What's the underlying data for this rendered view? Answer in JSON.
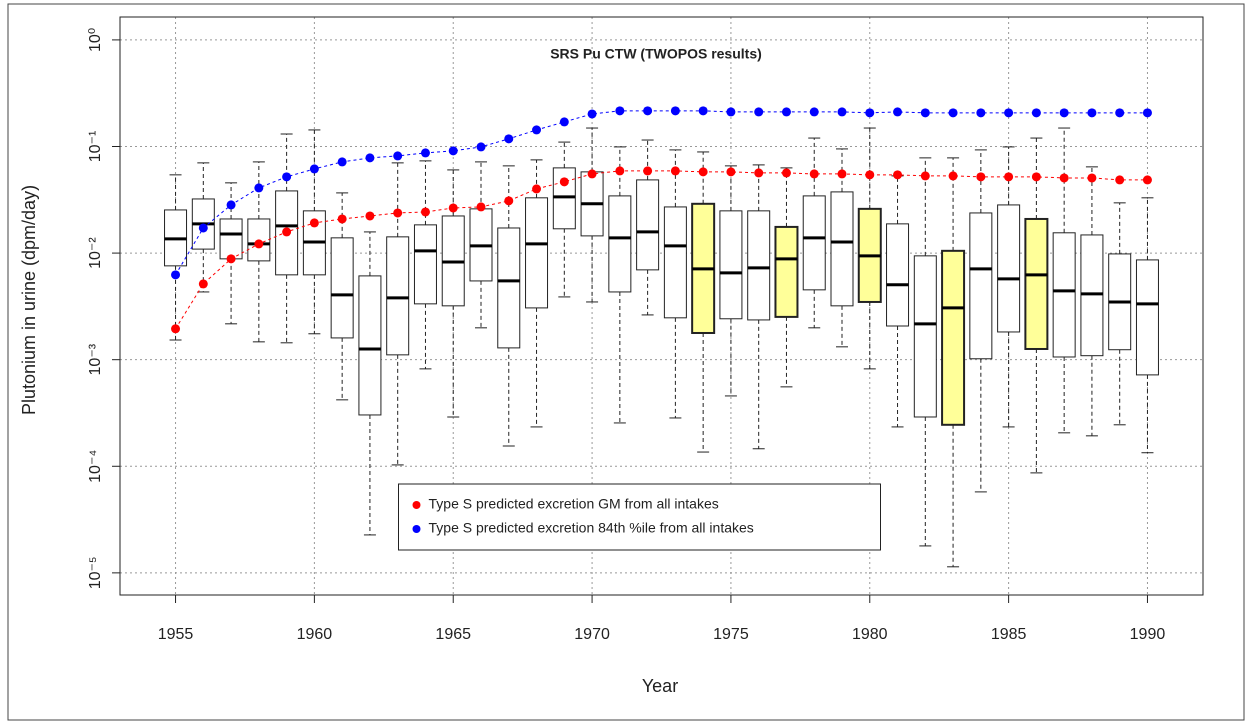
{
  "chart_data": {
    "type": "box",
    "title": "SRS Pu CTW (TWOPOS results)",
    "x_label": "Year",
    "y_label": "Plutonium in urine (dpm/day)",
    "log_y": true,
    "grid": true,
    "legend": "bottom",
    "x": [
      1955,
      1956,
      1957,
      1958,
      1959,
      1960,
      1961,
      1962,
      1963,
      1964,
      1965,
      1966,
      1967,
      1968,
      1969,
      1970,
      1971,
      1972,
      1973,
      1974,
      1975,
      1976,
      1977,
      1978,
      1979,
      1980,
      1981,
      1982,
      1983,
      1984,
      1985,
      1986,
      1987,
      1988,
      1989,
      1990
    ],
    "xlim": [
      1953,
      1992
    ],
    "xticks": [
      1955,
      1960,
      1965,
      1970,
      1975,
      1980,
      1985,
      1990
    ],
    "ylim": [
      6.2e-06,
      1.64
    ],
    "yticks": [
      {
        "value": 1,
        "label": "10⁰"
      },
      {
        "value": 0.1,
        "label": "10⁻¹"
      },
      {
        "value": 0.01,
        "label": "10⁻²"
      },
      {
        "value": 0.001,
        "label": "10⁻³"
      },
      {
        "value": 0.0001,
        "label": "10⁻⁴"
      },
      {
        "value": 1e-05,
        "label": "10⁻⁵"
      }
    ],
    "boxes": {
      "whisker_high": [
        0.0542,
        0.0702,
        0.0456,
        0.0717,
        0.131,
        0.143,
        0.0367,
        0.0158,
        0.0702,
        0.0733,
        0.0603,
        0.0717,
        0.0658,
        0.0749,
        0.11,
        0.149,
        0.0991,
        0.115,
        0.0929,
        0.0889,
        0.0658,
        0.0672,
        0.063,
        0.12,
        0.0949,
        0.149,
        0.053,
        0.0782,
        0.0782,
        0.0929,
        0.0991,
        0.12,
        0.149,
        0.0644,
        0.0296,
        0.033
      ],
      "q3": [
        0.0254,
        0.0322,
        0.0209,
        0.0209,
        0.0383,
        0.0249,
        0.0139,
        0.00611,
        0.0142,
        0.0184,
        0.0223,
        0.026,
        0.0172,
        0.033,
        0.063,
        0.0578,
        0.0344,
        0.0486,
        0.0271,
        0.029,
        0.0249,
        0.0249,
        0.0176,
        0.0344,
        0.0375,
        0.026,
        0.0188,
        0.00942,
        0.0105,
        0.0238,
        0.0283,
        0.0209,
        0.0155,
        0.0148,
        0.00982,
        0.00863
      ],
      "median": [
        0.0136,
        0.0188,
        0.0151,
        0.0122,
        0.018,
        0.0127,
        0.00405,
        0.00126,
        0.0038,
        0.0105,
        0.00826,
        0.0117,
        0.00548,
        0.0122,
        0.0337,
        0.029,
        0.0139,
        0.0158,
        0.0117,
        0.00711,
        0.00652,
        0.00727,
        0.00883,
        0.0139,
        0.0127,
        0.00942,
        0.00504,
        0.00217,
        0.00306,
        0.00711,
        0.00573,
        0.00625,
        0.00442,
        0.00414,
        0.00348,
        0.00334
      ],
      "q1": [
        0.00759,
        0.0109,
        0.00883,
        0.00845,
        0.00625,
        0.00625,
        0.0016,
        0.000303,
        0.00111,
        0.00334,
        0.0032,
        0.00548,
        0.00129,
        0.00306,
        0.0169,
        0.0145,
        0.00432,
        0.00696,
        0.00247,
        0.00178,
        0.00242,
        0.00236,
        0.00252,
        0.00452,
        0.0032,
        0.00348,
        0.00207,
        0.00029,
        0.000245,
        0.00102,
        0.00182,
        0.00126,
        0.00106,
        0.00109,
        0.00124,
        0.00072
      ],
      "whisker_low": [
        0.00153,
        0.00432,
        0.00217,
        0.00147,
        0.00144,
        0.00175,
        0.00042,
        2.27e-05,
        0.000103,
        0.00082,
        0.00029,
        0.00199,
        0.000155,
        0.000234,
        0.00388,
        0.00348,
        0.000255,
        0.00263,
        0.000284,
        0.000136,
        0.000457,
        0.000146,
        0.000556,
        0.00199,
        0.00132,
        0.00082,
        0.000234,
        1.79e-05,
        1.14e-05,
        5.75e-05,
        0.000234,
        8.67e-05,
        0.000206,
        0.000193,
        0.000245,
        0.000134
      ],
      "colors": [
        "#ffffff",
        "#ffffff",
        "#ffffff",
        "#ffffff",
        "#ffffff",
        "#ffffff",
        "#ffffff",
        "#ffffff",
        "#ffffff",
        "#ffffff",
        "#ffffff",
        "#ffffff",
        "#ffffff",
        "#ffffff",
        "#ffffff",
        "#ffffff",
        "#ffffff",
        "#ffffff",
        "#ffffff",
        "#ffff99",
        "#ffffff",
        "#ffffff",
        "#ffff99",
        "#ffffff",
        "#ffffff",
        "#ffff99",
        "#ffffff",
        "#ffffff",
        "#ffff99",
        "#ffffff",
        "#ffffff",
        "#ffff99",
        "#ffffff",
        "#ffffff",
        "#ffffff",
        "#ffffff"
      ]
    },
    "series": [
      {
        "name": "Type S predicted excretion GM from all intakes",
        "color": "#ff0000",
        "values": [
          0.00195,
          0.00514,
          0.00883,
          0.0122,
          0.0158,
          0.0192,
          0.0209,
          0.0223,
          0.0238,
          0.0243,
          0.0265,
          0.0271,
          0.0309,
          0.04,
          0.0466,
          0.0553,
          0.059,
          0.059,
          0.059,
          0.0578,
          0.0578,
          0.0565,
          0.0565,
          0.0553,
          0.0553,
          0.0542,
          0.0542,
          0.053,
          0.053,
          0.0519,
          0.0519,
          0.0519,
          0.0507,
          0.0507,
          0.0486,
          0.0486
        ]
      },
      {
        "name": "Type S predicted excretion 84th %ile from all intakes",
        "color": "#0000ff",
        "values": [
          0.00625,
          0.0172,
          0.0283,
          0.0409,
          0.0519,
          0.0616,
          0.0717,
          0.0782,
          0.0816,
          0.0871,
          0.091,
          0.0991,
          0.118,
          0.143,
          0.17,
          0.202,
          0.216,
          0.216,
          0.216,
          0.216,
          0.211,
          0.211,
          0.211,
          0.211,
          0.211,
          0.207,
          0.211,
          0.207,
          0.207,
          0.207,
          0.207,
          0.207,
          0.207,
          0.207,
          0.207,
          0.207
        ]
      }
    ]
  }
}
